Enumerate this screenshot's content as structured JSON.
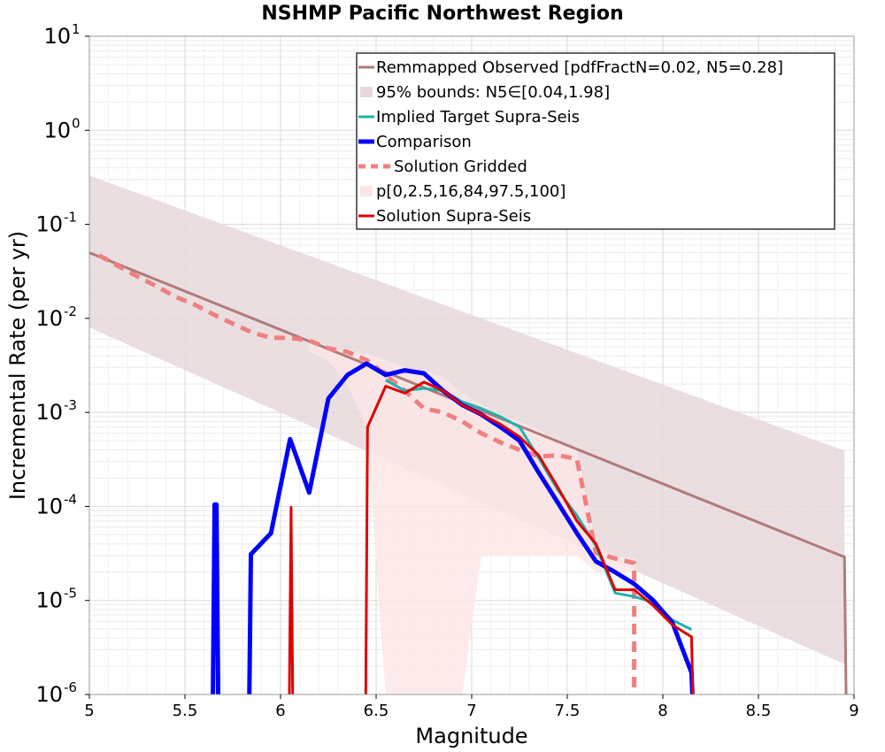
{
  "chart_data": {
    "type": "line",
    "title": "NSHMP Pacific Northwest Region",
    "xlabel": "Magnitude",
    "ylabel": "Incremental Rate (per yr)",
    "xlim": [
      5,
      9
    ],
    "ylim_log10": [
      -6,
      1
    ],
    "y_scale": "log",
    "grid": true,
    "legend_position": "top-right",
    "x_ticks": [
      "5",
      "5.5",
      "6",
      "6.5",
      "7",
      "7.5",
      "8",
      "8.5",
      "9"
    ],
    "x_tick_values": [
      5,
      5.5,
      6,
      6.5,
      7,
      7.5,
      8,
      8.5,
      9
    ],
    "y_ticks": [
      {
        "base": "10",
        "exp": "1",
        "value": 1
      },
      {
        "base": "10",
        "exp": "0",
        "value": 0
      },
      {
        "base": "10",
        "exp": "-1",
        "value": -1
      },
      {
        "base": "10",
        "exp": "-2",
        "value": -2
      },
      {
        "base": "10",
        "exp": "-3",
        "value": -3
      },
      {
        "base": "10",
        "exp": "-4",
        "value": -4
      },
      {
        "base": "10",
        "exp": "-5",
        "value": -5
      },
      {
        "base": "10",
        "exp": "-6",
        "value": -6
      }
    ],
    "bands": [
      {
        "name": "95% bounds: N5∈[0.04,1.98]",
        "color": "#e8d8da",
        "x": [
          5.0,
          8.95
        ],
        "upper": [
          0.33,
          0.00039
        ],
        "lower": [
          0.008,
          2.1e-06
        ]
      },
      {
        "name": "p[0,2.5,16,84,97.5,100]",
        "color": "#fde6e6",
        "x": [
          6.15,
          6.25,
          6.35,
          6.45,
          6.55,
          6.65,
          6.75,
          6.85,
          6.95,
          7.05,
          7.15,
          7.25,
          7.35,
          7.45,
          7.55,
          7.65,
          7.75,
          7.85
        ],
        "upper": [
          0.0055,
          0.0048,
          0.0044,
          0.0042,
          0.0036,
          0.003,
          0.0027,
          0.0024,
          0.0016,
          0.0012,
          0.00095,
          0.0008,
          0.00065,
          0.0005,
          0.0004,
          4e-05,
          3e-05,
          2.8e-05
        ],
        "lower": [
          0.0045,
          0.0035,
          0.002,
          0.0007,
          1e-06,
          1e-06,
          1e-06,
          1e-06,
          1e-06,
          3e-05,
          3e-05,
          3e-05,
          3e-05,
          3e-05,
          3e-05,
          2e-05,
          2e-05,
          2e-05
        ]
      }
    ],
    "series": [
      {
        "name": "Remmapped Observed [pdfFractN=0.02, N5=0.28]",
        "color": "#b07a7a",
        "width": 3,
        "dash": "",
        "x": [
          5.0,
          8.95,
          8.96
        ],
        "y": [
          0.05,
          2.9e-05,
          5e-07
        ]
      },
      {
        "name": "Implied Target Supra-Seis",
        "color": "#20b2aa",
        "width": 3,
        "dash": "",
        "x": [
          6.55,
          6.65,
          6.75,
          6.85,
          6.95,
          7.05,
          7.15,
          7.25,
          7.35,
          7.45,
          7.55,
          7.65,
          7.75,
          7.85,
          7.95,
          8.05,
          8.15
        ],
        "y": [
          0.0022,
          0.0017,
          0.0018,
          0.0017,
          0.0013,
          0.0011,
          0.0009,
          0.0007,
          0.00033,
          0.00015,
          8e-05,
          3.8e-05,
          1.2e-05,
          1.1e-05,
          9.5e-06,
          6.2e-06,
          4.9e-06
        ]
      },
      {
        "name": "Comparison",
        "color": "#0000ff",
        "width": 5,
        "dash": "",
        "x": [
          5.635,
          5.645,
          5.655,
          5.665,
          5.675,
          5.685,
          5.825,
          5.835,
          5.845,
          5.95,
          6.05,
          6.15,
          6.25,
          6.35,
          6.45,
          6.55,
          6.65,
          6.75,
          6.85,
          6.95,
          7.05,
          7.15,
          7.25,
          7.35,
          7.45,
          7.55,
          7.65,
          7.75,
          7.85,
          7.95,
          8.05,
          8.15,
          8.16
        ],
        "y": [
          5e-07,
          5e-07,
          0.000105,
          0.000105,
          5e-07,
          5e-07,
          5e-07,
          5e-07,
          3.1e-05,
          5.2e-05,
          0.00052,
          0.00014,
          0.0014,
          0.0025,
          0.0033,
          0.0025,
          0.0028,
          0.0026,
          0.0017,
          0.0012,
          0.00095,
          0.0007,
          0.0005,
          0.00023,
          0.00011,
          5.2e-05,
          2.6e-05,
          2e-05,
          1.5e-05,
          1e-05,
          5.8e-06,
          1.7e-06,
          5e-07
        ]
      },
      {
        "name": "Solution Gridded",
        "color": "#f08080",
        "width": 5,
        "dash": "12,8",
        "x": [
          5.05,
          5.15,
          5.25,
          5.35,
          5.45,
          5.55,
          5.65,
          5.75,
          5.85,
          5.95,
          6.05,
          6.15,
          6.25,
          6.35,
          6.45,
          6.55,
          6.65,
          6.75,
          6.85,
          6.95,
          7.05,
          7.15,
          7.25,
          7.35,
          7.45,
          7.55,
          7.65,
          7.75,
          7.85,
          7.85
        ],
        "y": [
          0.047,
          0.036,
          0.028,
          0.022,
          0.017,
          0.014,
          0.011,
          0.0088,
          0.0071,
          0.0062,
          0.0062,
          0.0058,
          0.0048,
          0.0044,
          0.0036,
          0.0025,
          0.0017,
          0.0011,
          0.001,
          0.0008,
          0.0006,
          0.00048,
          0.0004,
          0.00034,
          0.00035,
          0.00032,
          3.2e-05,
          2.8e-05,
          2.5e-05,
          8e-07
        ]
      },
      {
        "name": "Solution Supra-Seis",
        "color": "#e00000",
        "width": 3,
        "dash": "",
        "x": [
          6.035,
          6.045,
          6.055,
          6.065,
          6.075,
          6.435,
          6.445,
          6.455,
          6.55,
          6.65,
          6.75,
          6.85,
          6.95,
          7.05,
          7.15,
          7.25,
          7.35,
          7.45,
          7.55,
          7.65,
          7.75,
          7.85,
          7.95,
          8.05,
          8.15,
          8.16
        ],
        "y": [
          5e-07,
          5e-07,
          9.8e-05,
          5e-07,
          5e-07,
          5e-07,
          5e-07,
          0.0007,
          0.0019,
          0.0016,
          0.0021,
          0.0017,
          0.0012,
          0.00095,
          0.00075,
          0.00055,
          0.00035,
          0.00016,
          7e-05,
          4e-05,
          1.3e-05,
          1.3e-05,
          8.8e-06,
          5.5e-06,
          4.1e-06,
          5e-07
        ]
      }
    ],
    "legend": [
      {
        "label": "Remmapped Observed [pdfFractN=0.02, N5=0.28]",
        "kind": "line",
        "color": "#b07a7a",
        "width": 3,
        "dash": ""
      },
      {
        "label": "95% bounds: N5∈[0.04,1.98]",
        "kind": "band",
        "color": "#e8d8da"
      },
      {
        "label": "Implied Target Supra-Seis",
        "kind": "line",
        "color": "#20b2aa",
        "width": 3,
        "dash": ""
      },
      {
        "label": "Comparison",
        "kind": "line",
        "color": "#0000ff",
        "width": 5,
        "dash": ""
      },
      {
        "label": "Solution Gridded",
        "kind": "line",
        "color": "#f08080",
        "width": 5,
        "dash": "8,6"
      },
      {
        "label": "p[0,2.5,16,84,97.5,100]",
        "kind": "band",
        "color": "#fde6e6"
      },
      {
        "label": "Solution Supra-Seis",
        "kind": "line",
        "color": "#e00000",
        "width": 3,
        "dash": ""
      }
    ]
  }
}
